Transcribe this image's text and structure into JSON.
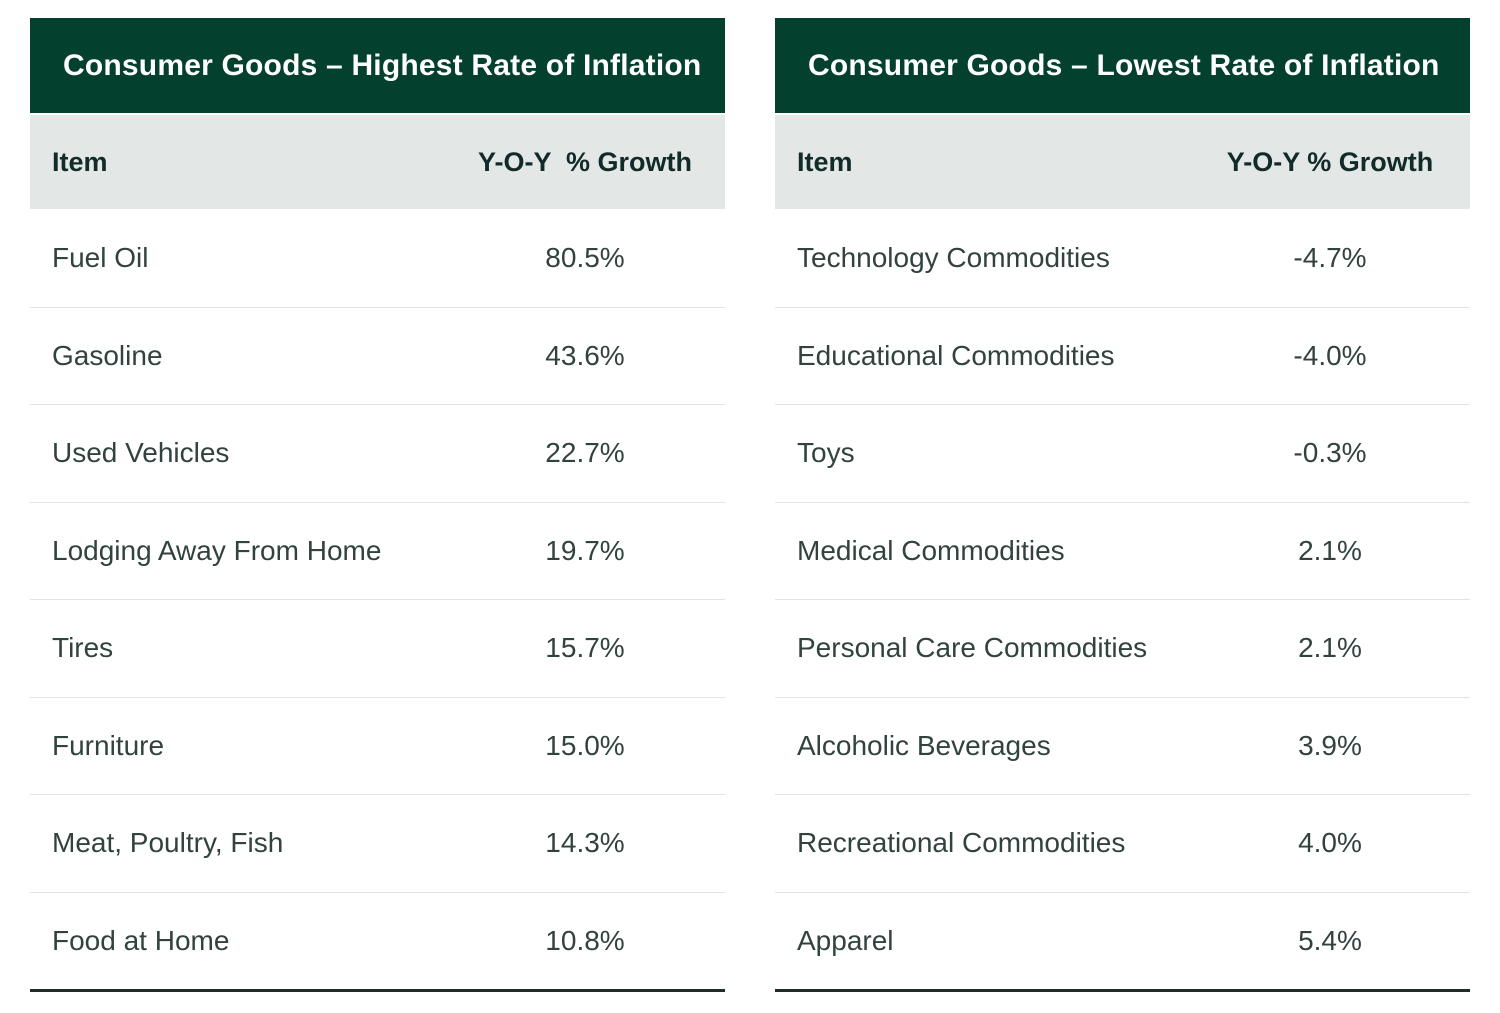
{
  "colors": {
    "title_bar_green": "#03402d",
    "header_row_gray": "#e3e8e6",
    "title_text": "#ffffff",
    "header_text": "#132b28",
    "body_text": "#31423f",
    "row_divider": "#e0e5e3",
    "bottom_rule": "#1e2d2a",
    "page_background": "#ffffff"
  },
  "tables": [
    {
      "title": "Consumer Goods – Highest Rate of Inflation",
      "item_header": "Item",
      "growth_header": "Y-O-Y  % Growth",
      "rows": [
        {
          "item": "Fuel Oil",
          "growth": "80.5%"
        },
        {
          "item": "Gasoline",
          "growth": "43.6%"
        },
        {
          "item": "Used Vehicles",
          "growth": "22.7%"
        },
        {
          "item": "Lodging Away From Home",
          "growth": "19.7%"
        },
        {
          "item": "Tires",
          "growth": "15.7%"
        },
        {
          "item": "Furniture",
          "growth": "15.0%"
        },
        {
          "item": "Meat, Poultry, Fish",
          "growth": "14.3%"
        },
        {
          "item": "Food at Home",
          "growth": "10.8%"
        }
      ]
    },
    {
      "title": "Consumer Goods – Lowest Rate of Inflation",
      "item_header": "Item",
      "growth_header": "Y-O-Y % Growth",
      "rows": [
        {
          "item": "Technology Commodities",
          "growth": "-4.7%"
        },
        {
          "item": "Educational Commodities",
          "growth": "-4.0%"
        },
        {
          "item": "Toys",
          "growth": "-0.3%"
        },
        {
          "item": "Medical Commodities",
          "growth": "2.1%"
        },
        {
          "item": "Personal Care Commodities",
          "growth": "2.1%"
        },
        {
          "item": "Alcoholic Beverages",
          "growth": "3.9%"
        },
        {
          "item": "Recreational Commodities",
          "growth": "4.0%"
        },
        {
          "item": "Apparel",
          "growth": "5.4%"
        }
      ]
    }
  ],
  "chart_data": [
    {
      "type": "table",
      "title": "Consumer Goods – Highest Rate of Inflation",
      "columns": [
        "Item",
        "Y-O-Y % Growth"
      ],
      "categories": [
        "Fuel Oil",
        "Gasoline",
        "Used Vehicles",
        "Lodging Away From Home",
        "Tires",
        "Furniture",
        "Meat, Poultry, Fish",
        "Food at Home"
      ],
      "values": [
        80.5,
        43.6,
        22.7,
        19.7,
        15.7,
        15.0,
        14.3,
        10.8
      ],
      "unit": "%"
    },
    {
      "type": "table",
      "title": "Consumer Goods – Lowest Rate of Inflation",
      "columns": [
        "Item",
        "Y-O-Y % Growth"
      ],
      "categories": [
        "Technology Commodities",
        "Educational Commodities",
        "Toys",
        "Medical Commodities",
        "Personal Care Commodities",
        "Alcoholic Beverages",
        "Recreational Commodities",
        "Apparel"
      ],
      "values": [
        -4.7,
        -4.0,
        -0.3,
        2.1,
        2.1,
        3.9,
        4.0,
        5.4
      ],
      "unit": "%"
    }
  ]
}
